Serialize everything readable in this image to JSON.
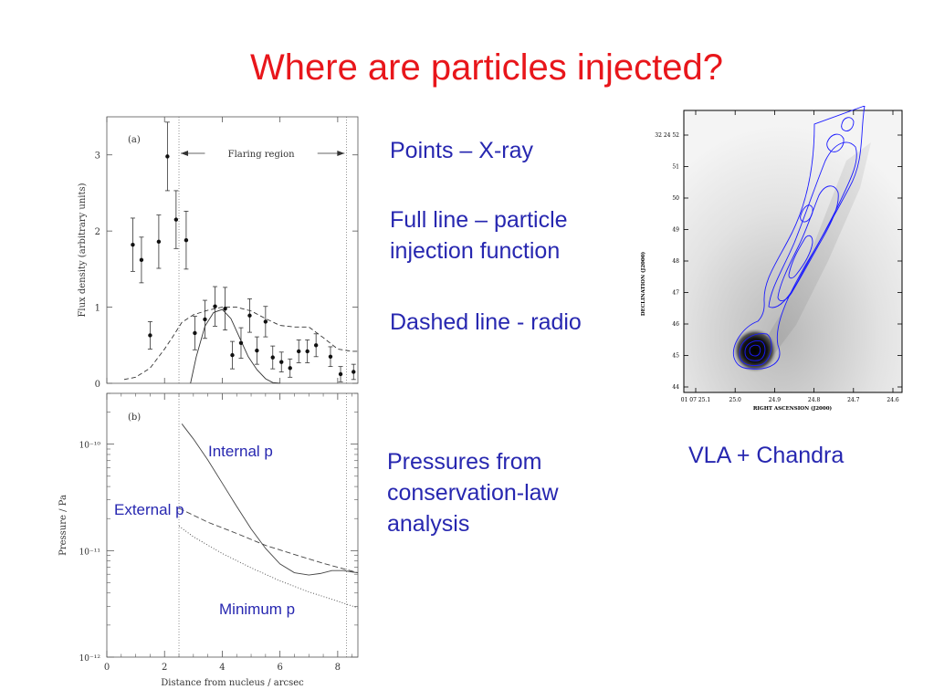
{
  "slide": {
    "title": "Where are particles injected?",
    "bullets": [
      "Points – X-ray",
      "Full line – particle injection function",
      "Dashed line - radio"
    ],
    "pressures_text": "Pressures from conservation-law analysis",
    "image_caption": "VLA + Chandra"
  },
  "colors": {
    "title": "#e8161b",
    "text": "#2727b0",
    "contours": "#1a1aff"
  },
  "chart_data": [
    {
      "type": "scatter",
      "panel_label": "(a)",
      "ylabel": "Flux density (arbitrary units)",
      "xlim": [
        0,
        8.7
      ],
      "ylim": [
        0,
        3.5
      ],
      "yticks": [
        "0",
        "1",
        "2",
        "3"
      ],
      "grid": false,
      "annotation": "Flaring region",
      "vertical_lines_x": [
        2.5,
        8.3
      ],
      "series": [
        {
          "style": "points-with-errorbars",
          "points": [
            {
              "x": 0.9,
              "y": 1.82,
              "err": 0.35
            },
            {
              "x": 1.2,
              "y": 1.62,
              "err": 0.3
            },
            {
              "x": 1.5,
              "y": 0.63,
              "err": 0.18
            },
            {
              "x": 1.8,
              "y": 1.86,
              "err": 0.35
            },
            {
              "x": 2.1,
              "y": 2.98,
              "err": 0.45
            },
            {
              "x": 2.4,
              "y": 2.15,
              "err": 0.38
            },
            {
              "x": 2.75,
              "y": 1.88,
              "err": 0.38
            },
            {
              "x": 3.05,
              "y": 0.66,
              "err": 0.22
            },
            {
              "x": 3.4,
              "y": 0.84,
              "err": 0.25
            },
            {
              "x": 3.75,
              "y": 1.01,
              "err": 0.26
            },
            {
              "x": 4.1,
              "y": 0.98,
              "err": 0.28
            },
            {
              "x": 4.35,
              "y": 0.37,
              "err": 0.18
            },
            {
              "x": 4.65,
              "y": 0.53,
              "err": 0.2
            },
            {
              "x": 4.95,
              "y": 0.89,
              "err": 0.22
            },
            {
              "x": 5.2,
              "y": 0.43,
              "err": 0.18
            },
            {
              "x": 5.5,
              "y": 0.81,
              "err": 0.2
            },
            {
              "x": 5.75,
              "y": 0.34,
              "err": 0.15
            },
            {
              "x": 6.05,
              "y": 0.28,
              "err": 0.13
            },
            {
              "x": 6.35,
              "y": 0.2,
              "err": 0.12
            },
            {
              "x": 6.65,
              "y": 0.42,
              "err": 0.15
            },
            {
              "x": 6.95,
              "y": 0.42,
              "err": 0.15
            },
            {
              "x": 7.25,
              "y": 0.5,
              "err": 0.15
            },
            {
              "x": 7.75,
              "y": 0.35,
              "err": 0.13
            },
            {
              "x": 8.1,
              "y": 0.12,
              "err": 0.1
            },
            {
              "x": 8.55,
              "y": 0.15,
              "err": 0.1
            }
          ]
        },
        {
          "style": "solid",
          "x": [
            2.9,
            3.1,
            3.4,
            3.7,
            4.0,
            4.3,
            4.6,
            4.9,
            5.2,
            5.5,
            5.75,
            6.0
          ],
          "y": [
            0.0,
            0.35,
            0.75,
            0.93,
            0.97,
            0.85,
            0.6,
            0.35,
            0.18,
            0.06,
            0.01,
            0.0
          ]
        },
        {
          "style": "dashed",
          "x": [
            0.6,
            1.0,
            1.5,
            2.0,
            2.3,
            2.6,
            3.0,
            3.5,
            4.0,
            4.5,
            5.0,
            5.5,
            6.0,
            6.5,
            7.0,
            7.5,
            8.0,
            8.5,
            8.7
          ],
          "y": [
            0.05,
            0.08,
            0.2,
            0.45,
            0.62,
            0.8,
            0.9,
            0.96,
            1.0,
            1.0,
            0.95,
            0.85,
            0.76,
            0.74,
            0.74,
            0.6,
            0.45,
            0.42,
            0.42
          ]
        }
      ]
    },
    {
      "type": "line",
      "panel_label": "(b)",
      "xlabel": "Distance from nucleus / arcsec",
      "ylabel": "Pressure / Pa",
      "xlim": [
        0,
        8.7
      ],
      "xticks": [
        "0",
        "2",
        "4",
        "6",
        "8"
      ],
      "ylim": [
        1e-12,
        3e-10
      ],
      "yscale": "log",
      "yticks": [
        "10⁻¹²",
        "10⁻¹¹",
        "10⁻¹⁰"
      ],
      "grid": false,
      "vertical_lines_x": [
        2.5,
        8.3
      ],
      "series": [
        {
          "name": "Internal p",
          "style": "solid",
          "x": [
            2.6,
            3.0,
            3.5,
            4.0,
            4.5,
            5.0,
            5.5,
            6.0,
            6.5,
            7.0,
            7.4,
            7.8,
            8.2,
            8.5,
            8.7
          ],
          "y": [
            1.55e-10,
            1.12e-10,
            7.1e-11,
            4.3e-11,
            2.6e-11,
            1.6e-11,
            1.05e-11,
            7.5e-12,
            6.2e-12,
            5.9e-12,
            6.1e-12,
            6.5e-12,
            6.5e-12,
            6.3e-12,
            6.2e-12
          ]
        },
        {
          "name": "External p",
          "style": "dashed",
          "x": [
            2.5,
            3.5,
            4.5,
            5.5,
            6.5,
            7.5,
            8.7
          ],
          "y": [
            2.5e-11,
            1.85e-11,
            1.45e-11,
            1.12e-11,
            9.2e-12,
            7.6e-12,
            6.2e-12
          ]
        },
        {
          "name": "Minimum p",
          "style": "dotted",
          "x": [
            2.5,
            3.0,
            4.0,
            5.0,
            6.0,
            7.0,
            8.0,
            8.7
          ],
          "y": [
            1.7e-11,
            1.35e-11,
            9.4e-12,
            6.9e-12,
            5.2e-12,
            4.1e-12,
            3.35e-12,
            2.9e-12
          ]
        }
      ]
    }
  ],
  "image": {
    "description_role": "VLA radio contours over Chandra X-ray image",
    "dec_label": "DECLINATION (J2000)",
    "ra_label": "RIGHT ASCENSION (J2000)",
    "dec_ticks": [
      "32 24 52",
      "51",
      "50",
      "49",
      "48",
      "47",
      "46",
      "45",
      "44"
    ],
    "ra_ticks": [
      "01 07 25.1",
      "25.0",
      "24.9",
      "24.8",
      "24.7",
      "24.6"
    ]
  }
}
